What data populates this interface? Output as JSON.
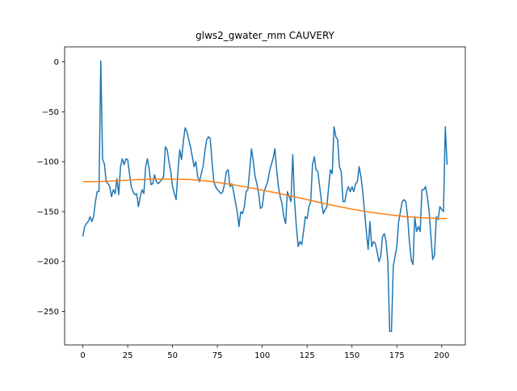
{
  "chart_data": {
    "type": "line",
    "title": "glws2_gwater_mm CAUVERY",
    "xlim": [
      -10.15,
      213.15
    ],
    "ylim": [
      -283.6,
      15.1
    ],
    "xticks": [
      0,
      25,
      50,
      75,
      100,
      125,
      150,
      175,
      200
    ],
    "yticks": [
      0,
      {
        "value": -50,
        "label": "−50"
      },
      {
        "value": -100,
        "label": "−100"
      },
      {
        "value": -150,
        "label": "−150"
      },
      {
        "value": -200,
        "label": "−200"
      },
      {
        "value": -250,
        "label": "−250"
      }
    ],
    "series": [
      {
        "color": "#1f77b4",
        "values": [
          -175,
          -165,
          -162,
          -160,
          -155,
          -160,
          -155,
          -140,
          -130,
          -130,
          1,
          -98,
          -102,
          -120,
          -122,
          -125,
          -135,
          -128,
          -132,
          -117,
          -133,
          -105,
          -97,
          -103,
          -97,
          -98,
          -112,
          -125,
          -130,
          -133,
          -132,
          -145,
          -135,
          -128,
          -132,
          -105,
          -97,
          -108,
          -123,
          -122,
          -113,
          -120,
          -122,
          -120,
          -118,
          -115,
          -85,
          -88,
          -100,
          -110,
          -125,
          -132,
          -138,
          -110,
          -88,
          -98,
          -80,
          -66,
          -70,
          -78,
          -85,
          -95,
          -105,
          -100,
          -115,
          -120,
          -112,
          -105,
          -90,
          -78,
          -75,
          -77,
          -100,
          -120,
          -125,
          -128,
          -130,
          -132,
          -130,
          -122,
          -110,
          -108,
          -125,
          -122,
          -130,
          -140,
          -150,
          -165,
          -150,
          -152,
          -145,
          -130,
          -128,
          -108,
          -87,
          -100,
          -115,
          -122,
          -132,
          -147,
          -145,
          -130,
          -125,
          -120,
          -110,
          -103,
          -97,
          -87,
          -108,
          -125,
          -135,
          -142,
          -155,
          -162,
          -130,
          -135,
          -140,
          -93,
          -140,
          -165,
          -185,
          -180,
          -183,
          -170,
          -155,
          -157,
          -145,
          -140,
          -103,
          -95,
          -108,
          -110,
          -125,
          -140,
          -152,
          -148,
          -145,
          -125,
          -108,
          -112,
          -65,
          -75,
          -78,
          -105,
          -110,
          -140,
          -140,
          -130,
          -125,
          -130,
          -125,
          -130,
          -122,
          -120,
          -105,
          -115,
          -130,
          -150,
          -170,
          -188,
          -160,
          -185,
          -180,
          -182,
          -190,
          -200,
          -195,
          -175,
          -172,
          -180,
          -200,
          -270,
          -270,
          -205,
          -195,
          -185,
          -160,
          -150,
          -140,
          -138,
          -140,
          -155,
          -180,
          -198,
          -203,
          -155,
          -170,
          -165,
          -170,
          -128,
          -128,
          -125,
          -135,
          -150,
          -175,
          -198,
          -193,
          -155,
          -158,
          -145,
          -148,
          -150,
          -65,
          -103
        ]
      },
      {
        "color": "#ff7f0e",
        "x": [
          0,
          10,
          20,
          30,
          40,
          50,
          60,
          70,
          80,
          90,
          100,
          110,
          120,
          130,
          140,
          150,
          160,
          170,
          180,
          190,
          200,
          203
        ],
        "values": [
          -120,
          -119.8,
          -119,
          -118,
          -117.5,
          -117.5,
          -118,
          -119.5,
          -122,
          -125,
          -128.5,
          -132,
          -136,
          -140,
          -144,
          -147.5,
          -150.5,
          -153,
          -155,
          -156.3,
          -157,
          -157
        ]
      }
    ]
  }
}
